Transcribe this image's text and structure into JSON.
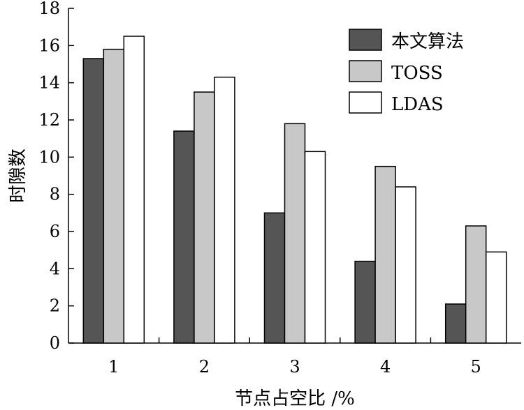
{
  "chart_data": {
    "type": "bar",
    "title": "",
    "xlabel": "节点占空比 /%",
    "ylabel": "时隙数",
    "categories": [
      "1",
      "2",
      "3",
      "4",
      "5"
    ],
    "series": [
      {
        "name": "本文算法",
        "values": [
          15.3,
          11.4,
          7.0,
          4.4,
          2.1
        ],
        "color": "#555555"
      },
      {
        "name": "TOSS",
        "values": [
          15.8,
          13.5,
          11.8,
          9.5,
          6.3
        ],
        "color": "#c8c8c8"
      },
      {
        "name": "LDAS",
        "values": [
          16.5,
          14.3,
          10.3,
          8.4,
          4.9
        ],
        "color": "#ffffff"
      }
    ],
    "ylim": [
      0,
      18
    ],
    "yticks": [
      0,
      2,
      4,
      6,
      8,
      10,
      12,
      14,
      16,
      18
    ],
    "grid": false,
    "legend_position": "top-right"
  }
}
